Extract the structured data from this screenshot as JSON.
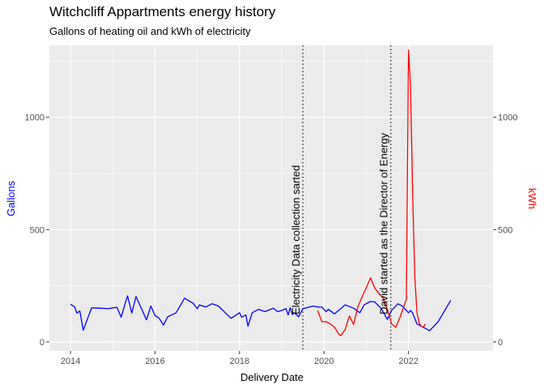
{
  "chart_data": {
    "type": "line",
    "title": "Witchcliff Appartments energy history",
    "subtitle": "Gallons of heating oil and kWh of electricity",
    "xlabel": "Delivery Date",
    "ylabel_left": "Gallons",
    "ylabel_right": "kWh",
    "xlim": [
      2013.5,
      2024.0
    ],
    "ylim": [
      -40,
      1320
    ],
    "x_ticks": [
      2014,
      2016,
      2018,
      2020,
      2022
    ],
    "y_ticks": [
      0,
      500,
      1000
    ],
    "grid": true,
    "series": [
      {
        "name": "Gallons",
        "axis": "left",
        "color": "#0000ff",
        "x": [
          2014.0,
          2014.1,
          2014.15,
          2014.22,
          2014.3,
          2014.5,
          2014.9,
          2014.95,
          2015.1,
          2015.2,
          2015.3,
          2015.35,
          2015.45,
          2015.55,
          2015.8,
          2015.9,
          2016.0,
          2016.1,
          2016.2,
          2016.3,
          2016.5,
          2016.7,
          2016.9,
          2017.0,
          2017.05,
          2017.2,
          2017.35,
          2017.5,
          2017.8,
          2018.0,
          2018.05,
          2018.15,
          2018.2,
          2018.3,
          2018.45,
          2018.6,
          2018.8,
          2018.9,
          2019.0,
          2019.1,
          2019.15,
          2019.2,
          2019.25,
          2019.3,
          2019.4,
          2019.5,
          2019.75,
          2019.85,
          2019.95,
          2020.05,
          2020.1,
          2020.25,
          2020.5,
          2020.7,
          2020.85,
          2020.95,
          2021.1,
          2021.2,
          2021.35,
          2021.5,
          2021.6,
          2021.75,
          2021.85,
          2021.95,
          2022.0,
          2022.05,
          2022.1,
          2022.2,
          2022.5,
          2022.7,
          2023.0
        ],
        "values": [
          168,
          155,
          128,
          138,
          52,
          152,
          148,
          150,
          154,
          110,
          175,
          205,
          128,
          202,
          98,
          160,
          118,
          105,
          75,
          112,
          130,
          195,
          172,
          148,
          165,
          155,
          170,
          160,
          105,
          130,
          110,
          120,
          70,
          130,
          145,
          135,
          150,
          135,
          140,
          148,
          120,
          152,
          122,
          130,
          112,
          148,
          160,
          155,
          155,
          135,
          145,
          125,
          165,
          150,
          130,
          165,
          180,
          178,
          150,
          100,
          140,
          170,
          160,
          140,
          130,
          140,
          128,
          80,
          50,
          90,
          185
        ]
      },
      {
        "name": "kWh",
        "axis": "right",
        "color": "#ff0000",
        "x": [
          2019.85,
          2019.95,
          2020.05,
          2020.15,
          2020.25,
          2020.35,
          2020.4,
          2020.5,
          2020.6,
          2020.7,
          2020.8,
          2020.9,
          2021.0,
          2021.1,
          2021.2,
          2021.3,
          2021.4,
          2021.5,
          2021.6,
          2021.7,
          2021.8,
          2021.95,
          2022.0,
          2022.05,
          2022.1,
          2022.15,
          2022.2,
          2022.25,
          2022.3,
          2022.35,
          2022.4
        ],
        "values": [
          140,
          90,
          90,
          80,
          65,
          35,
          28,
          55,
          115,
          78,
          155,
          200,
          240,
          285,
          240,
          215,
          195,
          145,
          80,
          65,
          110,
          190,
          1300,
          1130,
          650,
          290,
          130,
          85,
          70,
          65,
          80
        ]
      }
    ],
    "annotations": [
      {
        "x": 2019.5,
        "text": "Electricity Data collection sarted"
      },
      {
        "x": 2021.58,
        "text": "David started as the Director of Energy"
      }
    ]
  }
}
